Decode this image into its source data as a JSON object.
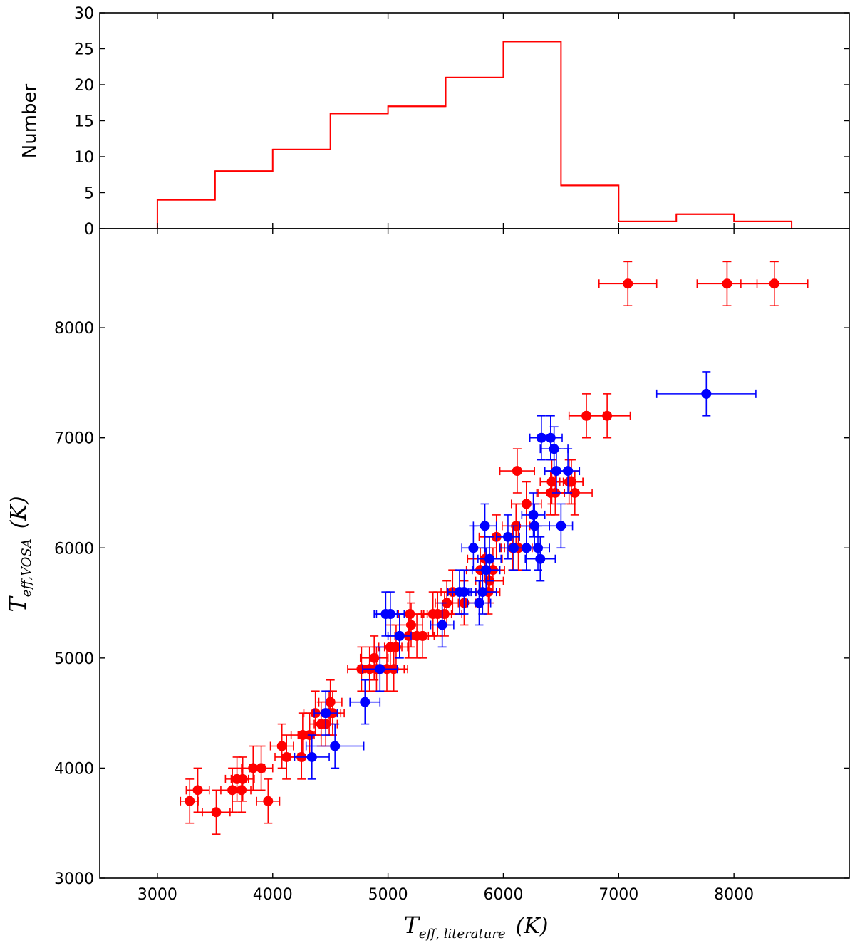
{
  "chart_data": [
    {
      "type": "histogram",
      "ylabel": "Number",
      "xlim": [
        2500,
        9000
      ],
      "ylim": [
        0,
        30
      ],
      "yticks": [
        0,
        5,
        10,
        15,
        20,
        25,
        30
      ],
      "color": "#ff0000",
      "bins": [
        {
          "x0": 3000,
          "x1": 3500,
          "count": 4
        },
        {
          "x0": 3500,
          "x1": 4000,
          "count": 8
        },
        {
          "x0": 4000,
          "x1": 4500,
          "count": 11
        },
        {
          "x0": 4500,
          "x1": 5000,
          "count": 16
        },
        {
          "x0": 5000,
          "x1": 5500,
          "count": 17
        },
        {
          "x0": 5500,
          "x1": 6000,
          "count": 21
        },
        {
          "x0": 6000,
          "x1": 6500,
          "count": 26
        },
        {
          "x0": 6500,
          "x1": 7000,
          "count": 6
        },
        {
          "x0": 7000,
          "x1": 7500,
          "count": 1
        },
        {
          "x0": 7500,
          "x1": 8000,
          "count": 2
        },
        {
          "x0": 8000,
          "x1": 8500,
          "count": 1
        }
      ]
    },
    {
      "type": "scatter",
      "xlabel": {
        "main": "T",
        "sub": "eff, literature",
        "unit": "(K)"
      },
      "ylabel": {
        "main": "T",
        "sub": "eff,VOSA",
        "unit": "(K)"
      },
      "xlim": [
        2500,
        9000
      ],
      "ylim": [
        3000,
        8900
      ],
      "xticks": [
        3000,
        4000,
        5000,
        6000,
        7000,
        8000
      ],
      "yticks": [
        3000,
        4000,
        5000,
        6000,
        7000,
        8000
      ],
      "series": [
        {
          "name": "red",
          "color": "#ff0000",
          "points": [
            [
              3280,
              3700,
              80,
              200
            ],
            [
              3350,
              3800,
              100,
              200
            ],
            [
              3510,
              3600,
              120,
              200
            ],
            [
              3650,
              3800,
              100,
              200
            ],
            [
              3690,
              3900,
              100,
              200
            ],
            [
              3730,
              3800,
              80,
              200
            ],
            [
              3740,
              3900,
              100,
              200
            ],
            [
              3830,
              4000,
              100,
              200
            ],
            [
              3900,
              4000,
              100,
              200
            ],
            [
              3960,
              3700,
              100,
              200
            ],
            [
              4080,
              4200,
              100,
              200
            ],
            [
              4120,
              4100,
              100,
              200
            ],
            [
              4250,
              4100,
              100,
              200
            ],
            [
              4260,
              4300,
              100,
              200
            ],
            [
              4320,
              4300,
              100,
              200
            ],
            [
              4370,
              4500,
              100,
              200
            ],
            [
              4420,
              4400,
              100,
              200
            ],
            [
              4460,
              4400,
              100,
              200
            ],
            [
              4490,
              4500,
              100,
              200
            ],
            [
              4500,
              4600,
              100,
              200
            ],
            [
              4520,
              4500,
              100,
              200
            ],
            [
              4770,
              4900,
              120,
              200
            ],
            [
              4840,
              4900,
              100,
              200
            ],
            [
              4880,
              5000,
              120,
              200
            ],
            [
              4900,
              4900,
              100,
              200
            ],
            [
              4990,
              4900,
              150,
              200
            ],
            [
              5020,
              5100,
              100,
              200
            ],
            [
              5050,
              4900,
              120,
              200
            ],
            [
              5070,
              5100,
              100,
              200
            ],
            [
              5180,
              5200,
              120,
              200
            ],
            [
              5190,
              5400,
              100,
              200
            ],
            [
              5200,
              5300,
              100,
              200
            ],
            [
              5250,
              5200,
              100,
              200
            ],
            [
              5300,
              5200,
              100,
              200
            ],
            [
              5390,
              5400,
              100,
              200
            ],
            [
              5430,
              5400,
              120,
              200
            ],
            [
              5490,
              5400,
              150,
              200
            ],
            [
              5510,
              5500,
              100,
              200
            ],
            [
              5560,
              5600,
              100,
              200
            ],
            [
              5660,
              5500,
              100,
              200
            ],
            [
              5800,
              5800,
              120,
              200
            ],
            [
              5840,
              5900,
              150,
              200
            ],
            [
              5870,
              5600,
              100,
              200
            ],
            [
              5880,
              5700,
              120,
              200
            ],
            [
              5910,
              5800,
              100,
              200
            ],
            [
              5940,
              6100,
              150,
              200
            ],
            [
              6080,
              6000,
              100,
              200
            ],
            [
              6110,
              6200,
              120,
              200
            ],
            [
              6120,
              6700,
              150,
              200
            ],
            [
              6130,
              6000,
              120,
              200
            ],
            [
              6200,
              6400,
              130,
              200
            ],
            [
              6410,
              6500,
              120,
              200
            ],
            [
              6420,
              6600,
              100,
              200
            ],
            [
              6450,
              6500,
              150,
              200
            ],
            [
              6570,
              6600,
              120,
              200
            ],
            [
              6590,
              6600,
              100,
              200
            ],
            [
              6620,
              6500,
              150,
              200
            ],
            [
              6720,
              7200,
              150,
              200
            ],
            [
              6900,
              7200,
              200,
              200
            ],
            [
              7080,
              8400,
              250,
              200
            ],
            [
              7940,
              8400,
              260,
              200
            ],
            [
              8350,
              8400,
              290,
              200
            ]
          ]
        },
        {
          "name": "blue",
          "color": "#0000ff",
          "points": [
            [
              4340,
              4100,
              150,
              200
            ],
            [
              4460,
              4500,
              100,
              200
            ],
            [
              4540,
              4200,
              250,
              200
            ],
            [
              4800,
              4600,
              130,
              200
            ],
            [
              4930,
              4900,
              150,
              200
            ],
            [
              4980,
              5400,
              100,
              200
            ],
            [
              5020,
              5400,
              120,
              200
            ],
            [
              5100,
              5200,
              100,
              200
            ],
            [
              5470,
              5300,
              100,
              200
            ],
            [
              5620,
              5600,
              100,
              200
            ],
            [
              5660,
              5600,
              100,
              200
            ],
            [
              5740,
              6000,
              100,
              200
            ],
            [
              5790,
              5500,
              100,
              200
            ],
            [
              5820,
              5600,
              120,
              200
            ],
            [
              5840,
              6200,
              100,
              200
            ],
            [
              5850,
              5800,
              120,
              200
            ],
            [
              5880,
              5900,
              100,
              200
            ],
            [
              6040,
              6100,
              100,
              200
            ],
            [
              6090,
              6000,
              120,
              200
            ],
            [
              6200,
              6000,
              100,
              200
            ],
            [
              6260,
              6300,
              100,
              200
            ],
            [
              6270,
              6200,
              130,
              200
            ],
            [
              6300,
              6000,
              100,
              200
            ],
            [
              6320,
              5900,
              130,
              200
            ],
            [
              6330,
              7000,
              100,
              200
            ],
            [
              6410,
              7000,
              100,
              200
            ],
            [
              6440,
              6900,
              120,
              200
            ],
            [
              6460,
              6700,
              100,
              200
            ],
            [
              6500,
              6200,
              100,
              200
            ],
            [
              6560,
              6700,
              100,
              200
            ],
            [
              7760,
              7400,
              430,
              200
            ]
          ]
        }
      ]
    }
  ]
}
